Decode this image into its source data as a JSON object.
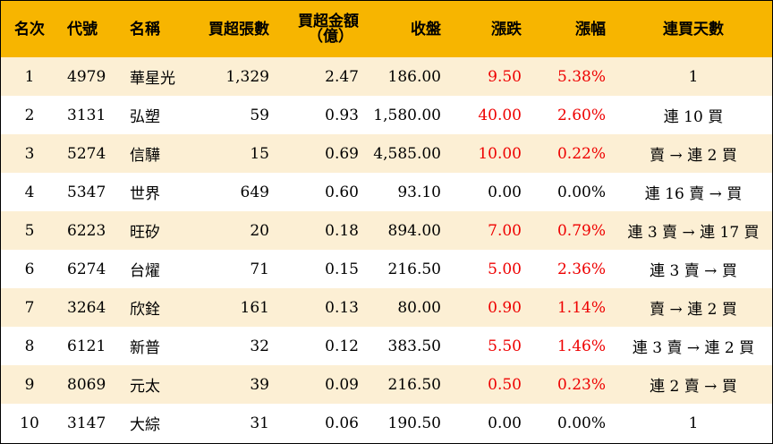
{
  "headers": {
    "rank": "名次",
    "code": "代號",
    "name": "名稱",
    "net_lots": "買超張數",
    "net_amount_line1": "買超金額",
    "net_amount_line2": "（億）",
    "close": "收盤",
    "change": "漲跌",
    "change_pct": "漲幅",
    "streak": "連買天數"
  },
  "colors": {
    "header_bg": "#f7b500",
    "odd_row_bg": "#fcefd4",
    "even_row_bg": "#ffffff",
    "up_color": "#ee0000"
  },
  "rows": [
    {
      "rank": "1",
      "code": "4979",
      "name": "華星光",
      "net_lots": "1,329",
      "net_amount": "2.47",
      "close": "186.00",
      "change": "9.50",
      "change_pct": "5.38%",
      "streak": "1",
      "up": true
    },
    {
      "rank": "2",
      "code": "3131",
      "name": "弘塑",
      "net_lots": "59",
      "net_amount": "0.93",
      "close": "1,580.00",
      "change": "40.00",
      "change_pct": "2.60%",
      "streak": "連 10 買",
      "up": true
    },
    {
      "rank": "3",
      "code": "5274",
      "name": "信驊",
      "net_lots": "15",
      "net_amount": "0.69",
      "close": "4,585.00",
      "change": "10.00",
      "change_pct": "0.22%",
      "streak": "賣 → 連 2 買",
      "up": true
    },
    {
      "rank": "4",
      "code": "5347",
      "name": "世界",
      "net_lots": "649",
      "net_amount": "0.60",
      "close": "93.10",
      "change": "0.00",
      "change_pct": "0.00%",
      "streak": "連 16 賣 → 買",
      "up": false
    },
    {
      "rank": "5",
      "code": "6223",
      "name": "旺矽",
      "net_lots": "20",
      "net_amount": "0.18",
      "close": "894.00",
      "change": "7.00",
      "change_pct": "0.79%",
      "streak": "連 3 賣 → 連 17 買",
      "up": true
    },
    {
      "rank": "6",
      "code": "6274",
      "name": "台燿",
      "net_lots": "71",
      "net_amount": "0.15",
      "close": "216.50",
      "change": "5.00",
      "change_pct": "2.36%",
      "streak": "連 3 賣 → 買",
      "up": true
    },
    {
      "rank": "7",
      "code": "3264",
      "name": "欣銓",
      "net_lots": "161",
      "net_amount": "0.13",
      "close": "80.00",
      "change": "0.90",
      "change_pct": "1.14%",
      "streak": "賣 → 連 2 買",
      "up": true
    },
    {
      "rank": "8",
      "code": "6121",
      "name": "新普",
      "net_lots": "32",
      "net_amount": "0.12",
      "close": "383.50",
      "change": "5.50",
      "change_pct": "1.46%",
      "streak": "連 3 賣 → 連 2 買",
      "up": true
    },
    {
      "rank": "9",
      "code": "8069",
      "name": "元太",
      "net_lots": "39",
      "net_amount": "0.09",
      "close": "216.50",
      "change": "0.50",
      "change_pct": "0.23%",
      "streak": "連 2 賣 → 買",
      "up": true
    },
    {
      "rank": "10",
      "code": "3147",
      "name": "大綜",
      "net_lots": "31",
      "net_amount": "0.06",
      "close": "190.50",
      "change": "0.00",
      "change_pct": "0.00%",
      "streak": "1",
      "up": false
    }
  ]
}
